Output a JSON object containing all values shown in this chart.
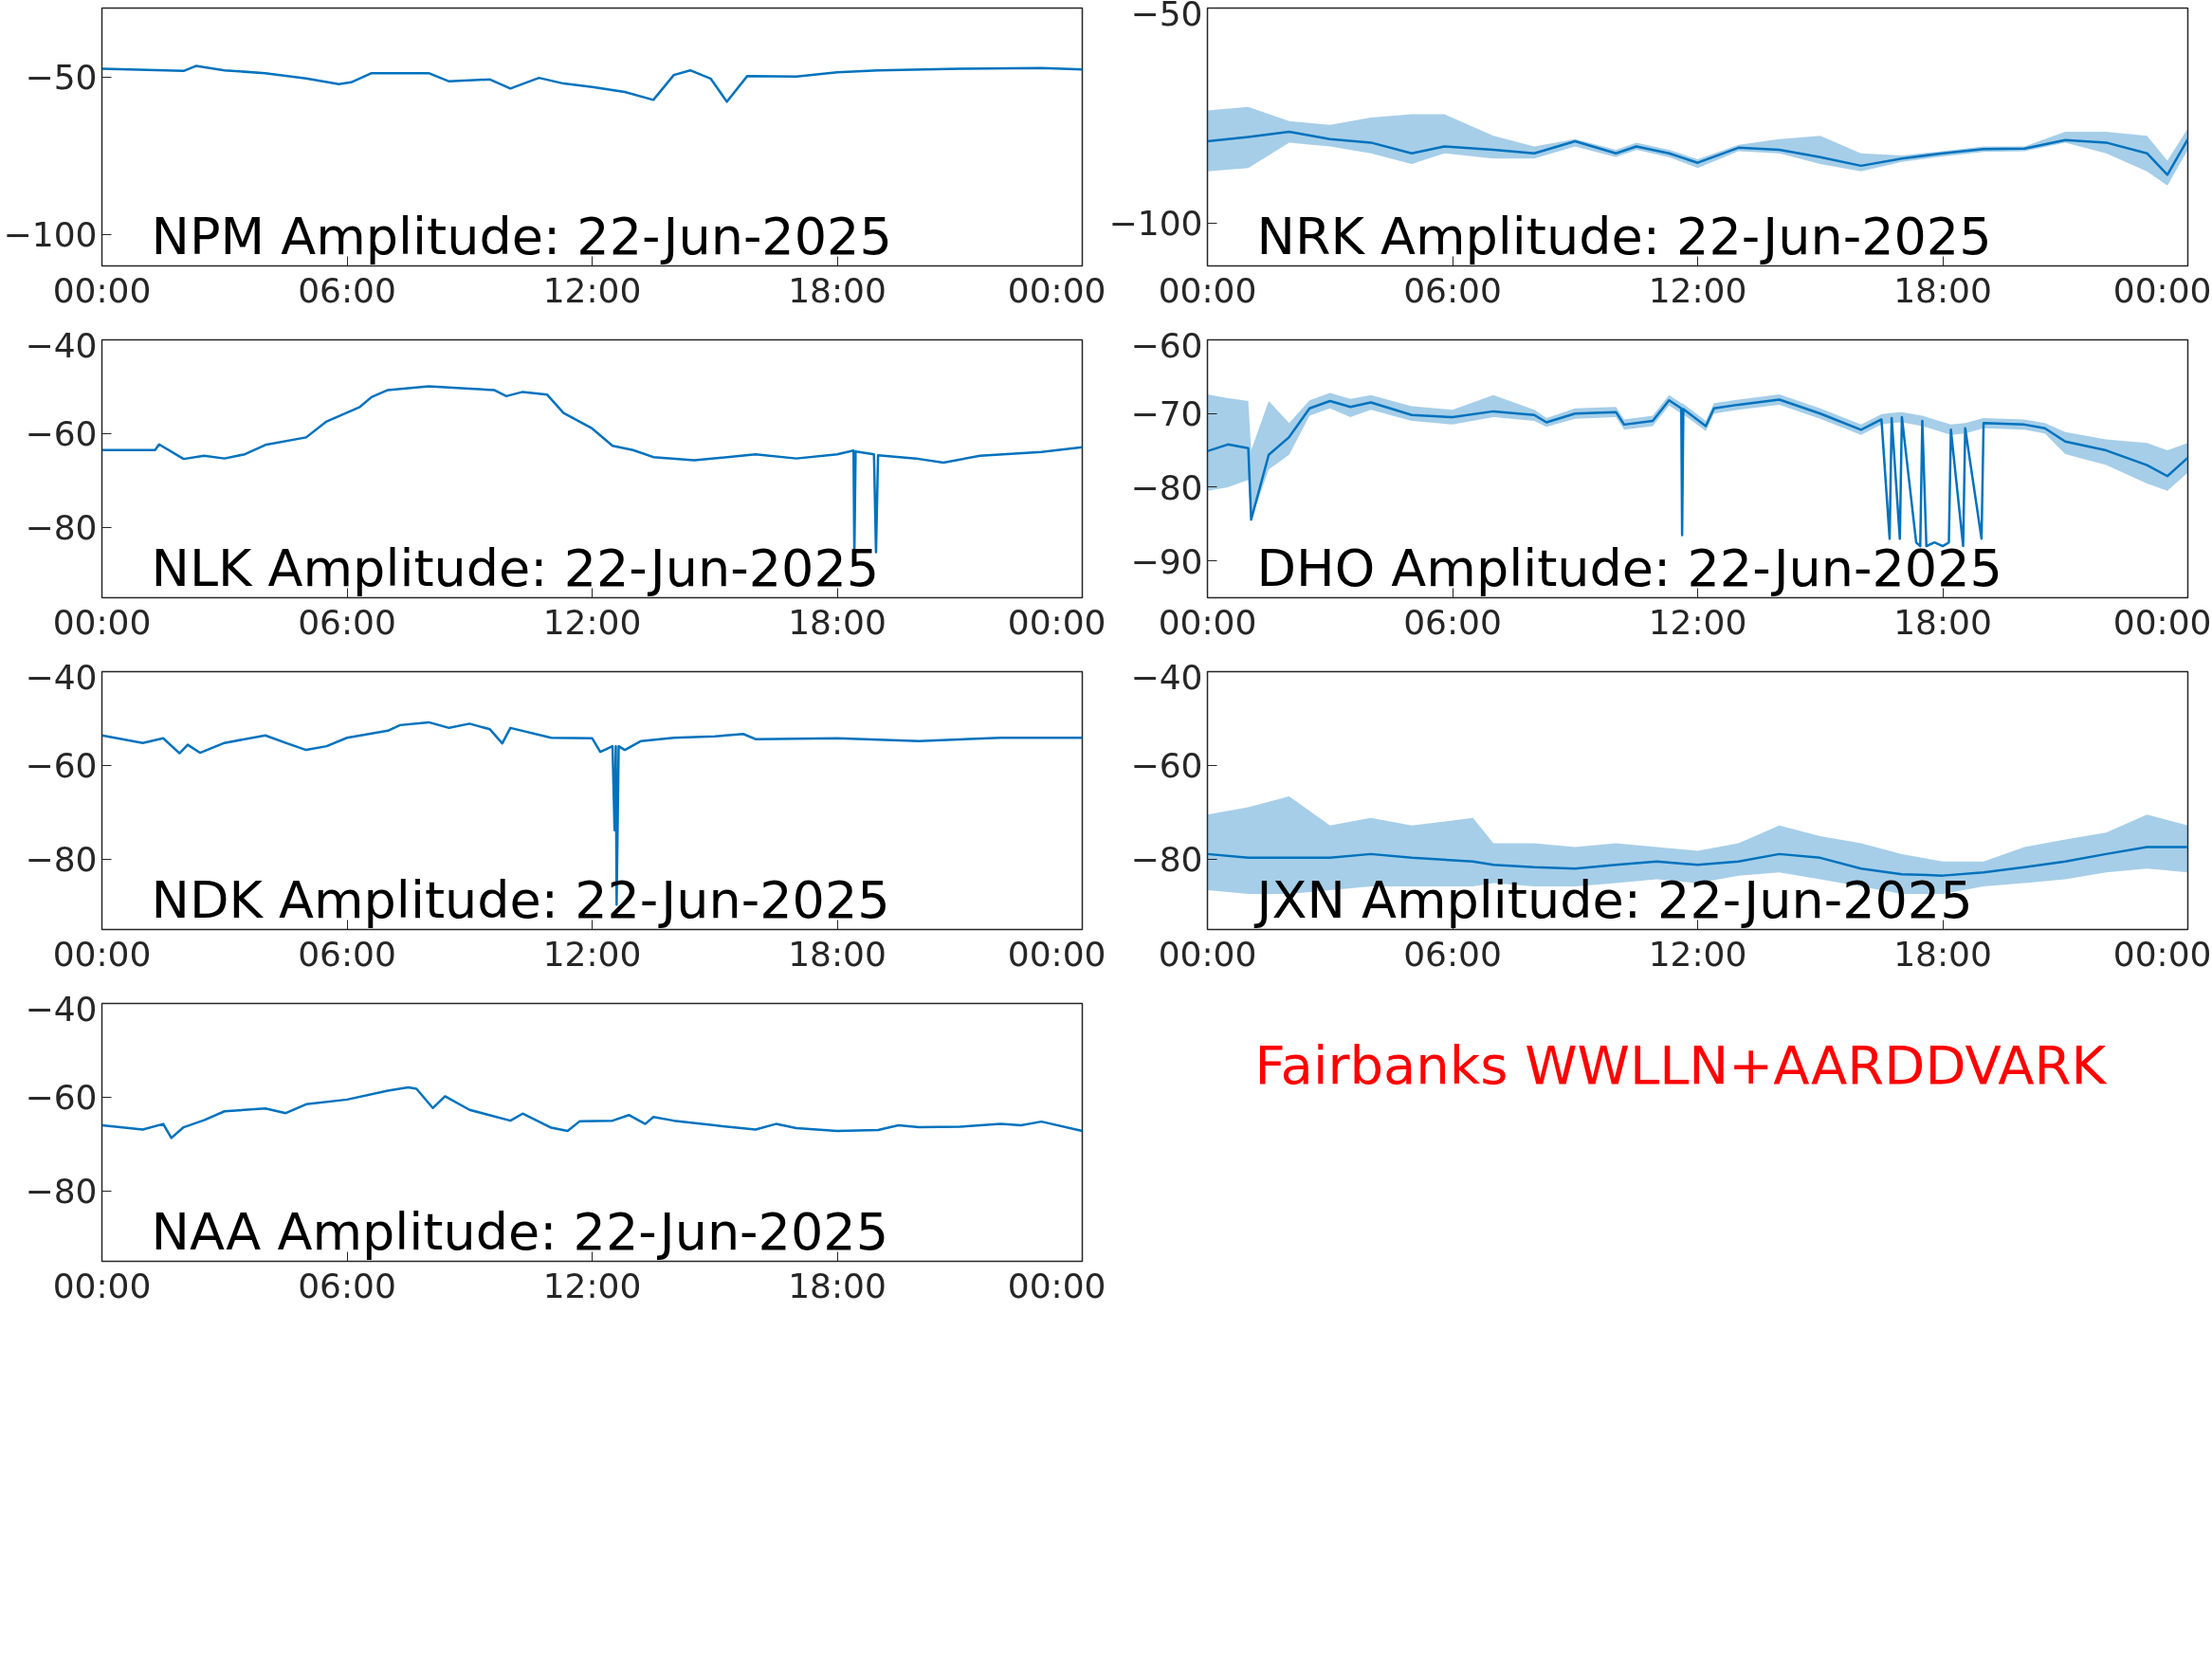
{
  "chart_data": [
    {
      "type": "line",
      "title": "NPM Amplitude: 22-Jun-2025",
      "xlim": [
        0,
        24
      ],
      "xticks": [
        {
          "value": 0,
          "label": "00:00"
        },
        {
          "value": 6,
          "label": "06:00"
        },
        {
          "value": 12,
          "label": "12:00"
        },
        {
          "value": 18,
          "label": "18:00"
        },
        {
          "value": 24,
          "label": "00:00"
        }
      ],
      "ylim": [
        -110,
        -28
      ],
      "yticks": [
        -100,
        -50
      ],
      "series": [
        {
          "color": "#0072bd",
          "x": [
            0,
            2,
            2.3,
            3,
            4,
            5,
            5.8,
            6.1,
            6.6,
            8,
            8.5,
            9.5,
            10,
            10.7,
            11.3,
            12,
            12.8,
            13.5,
            14,
            14.4,
            14.9,
            15.3,
            15.8,
            17,
            18,
            19,
            21,
            23,
            24
          ],
          "values": [
            -47.3,
            -48,
            -46.4,
            -47.8,
            -48.7,
            -50.4,
            -52.2,
            -51.6,
            -48.7,
            -48.7,
            -51.3,
            -50.7,
            -53.6,
            -50.2,
            -52,
            -53.1,
            -54.7,
            -57.2,
            -49.3,
            -47.8,
            -50.4,
            -57.8,
            -49.6,
            -49.8,
            -48.4,
            -47.8,
            -47.3,
            -47.1,
            -47.5
          ]
        }
      ]
    },
    {
      "type": "line",
      "title": "NRK Amplitude: 22-Jun-2025",
      "xlim": [
        0,
        24
      ],
      "xticks": [
        {
          "value": 0,
          "label": "00:00"
        },
        {
          "value": 6,
          "label": "06:00"
        },
        {
          "value": 12,
          "label": "12:00"
        },
        {
          "value": 18,
          "label": "18:00"
        },
        {
          "value": 24,
          "label": "00:00"
        }
      ],
      "ylim": [
        -110,
        -50
      ],
      "yticks": [
        -100,
        -50
      ],
      "series": [
        {
          "color": "#0072bd",
          "x": [
            0,
            1,
            2,
            3,
            4,
            5,
            5.8,
            7,
            8,
            9,
            10,
            10.5,
            11.3,
            12,
            13,
            14,
            15,
            16,
            17,
            18,
            19,
            20,
            21,
            22,
            23,
            23.5,
            24
          ],
          "values": [
            -81,
            -80,
            -78.8,
            -80.5,
            -81.3,
            -83.8,
            -82.2,
            -83,
            -83.8,
            -81,
            -83.8,
            -82.2,
            -83.8,
            -86,
            -82.5,
            -83,
            -84.7,
            -86.7,
            -85,
            -83.8,
            -82.8,
            -82.7,
            -80.7,
            -81.3,
            -83.8,
            -88.8,
            -80.5
          ],
          "lower": [
            -88,
            -87.2,
            -81.3,
            -82.2,
            -83.8,
            -86.3,
            -83.8,
            -85,
            -85,
            -82.2,
            -84.7,
            -83,
            -84.7,
            -87.2,
            -83.3,
            -83.8,
            -86.3,
            -88,
            -85.8,
            -84.5,
            -83.5,
            -83.3,
            -81.3,
            -83.8,
            -88,
            -91.3,
            -83
          ],
          "upper": [
            -73.8,
            -73,
            -76.3,
            -77.2,
            -75.5,
            -74.7,
            -74.7,
            -79.7,
            -82.2,
            -80.5,
            -83,
            -81.3,
            -83,
            -85.2,
            -81.8,
            -80.5,
            -79.7,
            -83.8,
            -84.3,
            -83.3,
            -82.2,
            -82.2,
            -78.8,
            -78.8,
            -79.7,
            -85.5,
            -78
          ]
        }
      ]
    },
    {
      "type": "line",
      "title": "NLK Amplitude: 22-Jun-2025",
      "xlim": [
        0,
        24
      ],
      "xticks": [
        {
          "value": 0,
          "label": "00:00"
        },
        {
          "value": 6,
          "label": "06:00"
        },
        {
          "value": 12,
          "label": "12:00"
        },
        {
          "value": 18,
          "label": "18:00"
        },
        {
          "value": 24,
          "label": "00:00"
        }
      ],
      "ylim": [
        -95,
        -40
      ],
      "yticks": [
        -80,
        -60,
        -40
      ],
      "series": [
        {
          "color": "#0072bd",
          "x": [
            0,
            1.3,
            1.4,
            2,
            2.5,
            3,
            3.5,
            4,
            5,
            5.5,
            6.3,
            6.6,
            7,
            8,
            9,
            9.6,
            9.9,
            10.3,
            10.9,
            11.3,
            12,
            12.5,
            13,
            13.5,
            14.5,
            16,
            17,
            18,
            18.4,
            18.42,
            18.45,
            18.9,
            18.95,
            19,
            20,
            20.6,
            21.5,
            23,
            24
          ],
          "values": [
            -63.5,
            -63.5,
            -62.3,
            -65.4,
            -64.7,
            -65.3,
            -64.4,
            -62.4,
            -60.8,
            -57.4,
            -54.4,
            -52.2,
            -50.7,
            -49.9,
            -50.4,
            -50.7,
            -52,
            -51.1,
            -51.7,
            -55.6,
            -58.9,
            -62.6,
            -63.5,
            -65,
            -65.7,
            -64.4,
            -65.3,
            -64.4,
            -63.6,
            -86.5,
            -63.8,
            -64.4,
            -85.3,
            -64.6,
            -65.4,
            -66.2,
            -64.7,
            -63.9,
            -62.9
          ]
        }
      ]
    },
    {
      "type": "line",
      "title": "DHO Amplitude: 22-Jun-2025",
      "xlim": [
        0,
        24
      ],
      "xticks": [
        {
          "value": 0,
          "label": "00:00"
        },
        {
          "value": 6,
          "label": "06:00"
        },
        {
          "value": 12,
          "label": "12:00"
        },
        {
          "value": 18,
          "label": "18:00"
        },
        {
          "value": 24,
          "label": "00:00"
        }
      ],
      "ylim": [
        -95,
        -60
      ],
      "yticks": [
        -90,
        -80,
        -70,
        -60
      ],
      "series": [
        {
          "color": "#0072bd",
          "x": [
            0,
            0.5,
            1,
            1.07,
            1.5,
            2,
            2.5,
            3,
            3.5,
            4,
            5,
            6,
            7,
            8,
            8.3,
            9,
            10,
            10.2,
            10.9,
            11.3,
            11.6,
            11.62,
            11.65,
            12.2,
            12.4,
            13,
            14,
            15,
            16,
            16.5,
            16.7,
            16.75,
            16.95,
            17,
            17.35,
            17.45,
            17.5,
            17.6,
            17.8,
            18,
            18.15,
            18.2,
            18.5,
            18.55,
            18.95,
            19,
            20,
            20.5,
            21,
            22,
            23,
            23.5,
            24
          ],
          "values": [
            -75.1,
            -74.2,
            -74.7,
            -84.4,
            -75.6,
            -73.2,
            -69.3,
            -68.3,
            -69.1,
            -68.5,
            -70.2,
            -70.5,
            -69.7,
            -70.2,
            -71.2,
            -70,
            -69.8,
            -71.5,
            -71,
            -68.2,
            -69.3,
            -86.5,
            -69.4,
            -71.7,
            -69.3,
            -68.8,
            -68.1,
            -70,
            -72.2,
            -70.8,
            -87,
            -70.6,
            -87,
            -70.5,
            -87.5,
            -88,
            -71,
            -88,
            -87.5,
            -88,
            -87.5,
            -72.2,
            -88,
            -72,
            -87,
            -71.3,
            -71.5,
            -72,
            -73.8,
            -75,
            -77,
            -78.5,
            -76
          ],
          "lower": [
            -80.5,
            -80,
            -79,
            -84.4,
            -77.6,
            -75.6,
            -70.3,
            -69.3,
            -70.5,
            -69.5,
            -71,
            -71.5,
            -70.5,
            -71,
            -71.8,
            -70.7,
            -70.5,
            -72.2,
            -71.7,
            -68.9,
            -70,
            null,
            -70.1,
            -72.4,
            -70,
            -69.5,
            -68.8,
            -70.7,
            -72.9,
            -71.5,
            null,
            -71.3,
            null,
            -71.2,
            null,
            null,
            -71.7,
            null,
            null,
            null,
            null,
            -72.9,
            null,
            -72.7,
            null,
            -72,
            -72.2,
            -72.7,
            -75.5,
            -77,
            -79.5,
            -80.5,
            -78
          ],
          "upper": [
            -67.4,
            -67.9,
            -68.3,
            -75,
            -68.3,
            -71.3,
            -68.2,
            -67.2,
            -68,
            -67.5,
            -69,
            -69.5,
            -67.5,
            -69.5,
            -70.6,
            -69.3,
            -69.1,
            -70.8,
            -70.3,
            -67.5,
            -68.6,
            null,
            -68.7,
            -71,
            -68.6,
            -68.1,
            -67.4,
            -69.3,
            -71.5,
            -70.1,
            null,
            -69.9,
            null,
            -69.8,
            null,
            null,
            -70.3,
            null,
            null,
            null,
            null,
            -71.5,
            null,
            -71.3,
            null,
            -70.6,
            -70.8,
            -71.3,
            -72.5,
            -73.5,
            -74,
            -75,
            -74
          ]
        }
      ]
    },
    {
      "type": "line",
      "title": "NDK Amplitude: 22-Jun-2025",
      "xlim": [
        0,
        24
      ],
      "xticks": [
        {
          "value": 0,
          "label": "00:00"
        },
        {
          "value": 6,
          "label": "06:00"
        },
        {
          "value": 12,
          "label": "12:00"
        },
        {
          "value": 18,
          "label": "18:00"
        },
        {
          "value": 24,
          "label": "00:00"
        }
      ],
      "ylim": [
        -95,
        -40
      ],
      "yticks": [
        -80,
        -60,
        -40
      ],
      "series": [
        {
          "color": "#0072bd",
          "x": [
            0,
            1,
            1.5,
            1.9,
            2.1,
            2.4,
            3,
            4,
            4.5,
            5,
            5.5,
            6,
            7,
            7.3,
            8,
            8.5,
            9,
            9.5,
            9.8,
            10,
            11,
            12,
            12.2,
            12.5,
            12.55,
            12.58,
            12.6,
            12.65,
            12.8,
            13.2,
            14,
            15,
            15.7,
            16,
            18,
            20,
            22,
            24
          ],
          "values": [
            -53.6,
            -55.2,
            -54.2,
            -57.4,
            -55.6,
            -57.3,
            -55.2,
            -53.6,
            -55.2,
            -56.7,
            -55.9,
            -54.1,
            -52.6,
            -51.4,
            -50.8,
            -52,
            -51.1,
            -52.3,
            -55.3,
            -52,
            -54.1,
            -54.2,
            -57.1,
            -55.9,
            -73.8,
            -55.9,
            -89.7,
            -55.9,
            -56.7,
            -54.8,
            -54.1,
            -53.8,
            -53.3,
            -54.4,
            -54.2,
            -54.8,
            -54.1,
            -54.1
          ]
        }
      ]
    },
    {
      "type": "line",
      "title": "JXN Amplitude: 22-Jun-2025",
      "xlim": [
        0,
        24
      ],
      "xticks": [
        {
          "value": 0,
          "label": "00:00"
        },
        {
          "value": 6,
          "label": "06:00"
        },
        {
          "value": 12,
          "label": "12:00"
        },
        {
          "value": 18,
          "label": "18:00"
        },
        {
          "value": 24,
          "label": "00:00"
        }
      ],
      "ylim": [
        -95,
        -40
      ],
      "yticks": [
        -80,
        -60,
        -40
      ],
      "series": [
        {
          "color": "#0072bd",
          "x": [
            0,
            1,
            2,
            3,
            4,
            5,
            6.5,
            7,
            8,
            9,
            10,
            11,
            12,
            13,
            14,
            15,
            16,
            17,
            18,
            19,
            20,
            21,
            22,
            23,
            24
          ],
          "values": [
            -78.9,
            -79.7,
            -79.7,
            -79.7,
            -78.9,
            -79.7,
            -80.5,
            -81.2,
            -81.7,
            -82,
            -81.2,
            -80.5,
            -81.2,
            -80.5,
            -78.9,
            -79.7,
            -82,
            -83.2,
            -83.5,
            -82.8,
            -81.7,
            -80.5,
            -78.9,
            -77.4,
            -77.4
          ],
          "lower": [
            -86.6,
            -87.4,
            -87.4,
            -86.6,
            -85.8,
            -85.8,
            -85.8,
            -85.1,
            -85.8,
            -85.8,
            -85.1,
            -84.3,
            -85.1,
            -83.5,
            -82.8,
            -84.3,
            -85.8,
            -87.4,
            -87.4,
            -85.8,
            -85.1,
            -84.3,
            -82.8,
            -82,
            -82.8
          ],
          "upper": [
            -70.5,
            -68.9,
            -66.6,
            -72.8,
            -71.2,
            -72.8,
            -71.2,
            -76.6,
            -76.6,
            -77.4,
            -76.6,
            -77.4,
            -78.2,
            -76.6,
            -72.8,
            -75.1,
            -76.6,
            -78.9,
            -80.5,
            -80.5,
            -77.4,
            -75.8,
            -74.3,
            -70.5,
            -72.8
          ]
        }
      ]
    },
    {
      "type": "line",
      "title": "NAA Amplitude: 22-Jun-2025",
      "xlim": [
        0,
        24
      ],
      "xticks": [
        {
          "value": 0,
          "label": "00:00"
        },
        {
          "value": 6,
          "label": "06:00"
        },
        {
          "value": 12,
          "label": "12:00"
        },
        {
          "value": 18,
          "label": "18:00"
        },
        {
          "value": 24,
          "label": "00:00"
        }
      ],
      "ylim": [
        -95,
        -40
      ],
      "yticks": [
        -80,
        -60,
        -40
      ],
      "series": [
        {
          "color": "#0072bd",
          "x": [
            0,
            1,
            1.5,
            1.7,
            2,
            2.5,
            3,
            4,
            4.5,
            5,
            6,
            7,
            7.5,
            7.7,
            8.1,
            8.4,
            9,
            10,
            10.3,
            11,
            11.4,
            11.7,
            12.5,
            12.9,
            13.3,
            13.5,
            14,
            15,
            16,
            16.5,
            17,
            18,
            19,
            19.5,
            20,
            21,
            22,
            22.5,
            23,
            24
          ],
          "values": [
            -66,
            -66.9,
            -65.7,
            -68.7,
            -66.4,
            -64.9,
            -63,
            -62.4,
            -63.4,
            -61.5,
            -60.5,
            -58.6,
            -57.9,
            -58.2,
            -62.3,
            -59.8,
            -62.7,
            -65,
            -63.5,
            -66.5,
            -67.2,
            -65.1,
            -65,
            -63.8,
            -65.7,
            -64.2,
            -65,
            -66,
            -66.9,
            -65.7,
            -66.6,
            -67.2,
            -67,
            -66,
            -66.4,
            -66.3,
            -65.7,
            -66,
            -65.2,
            -67.2
          ]
        }
      ]
    },
    {
      "type": "other",
      "annotations": [
        "Fairbanks WWLLN+AARDDVARK"
      ]
    }
  ]
}
